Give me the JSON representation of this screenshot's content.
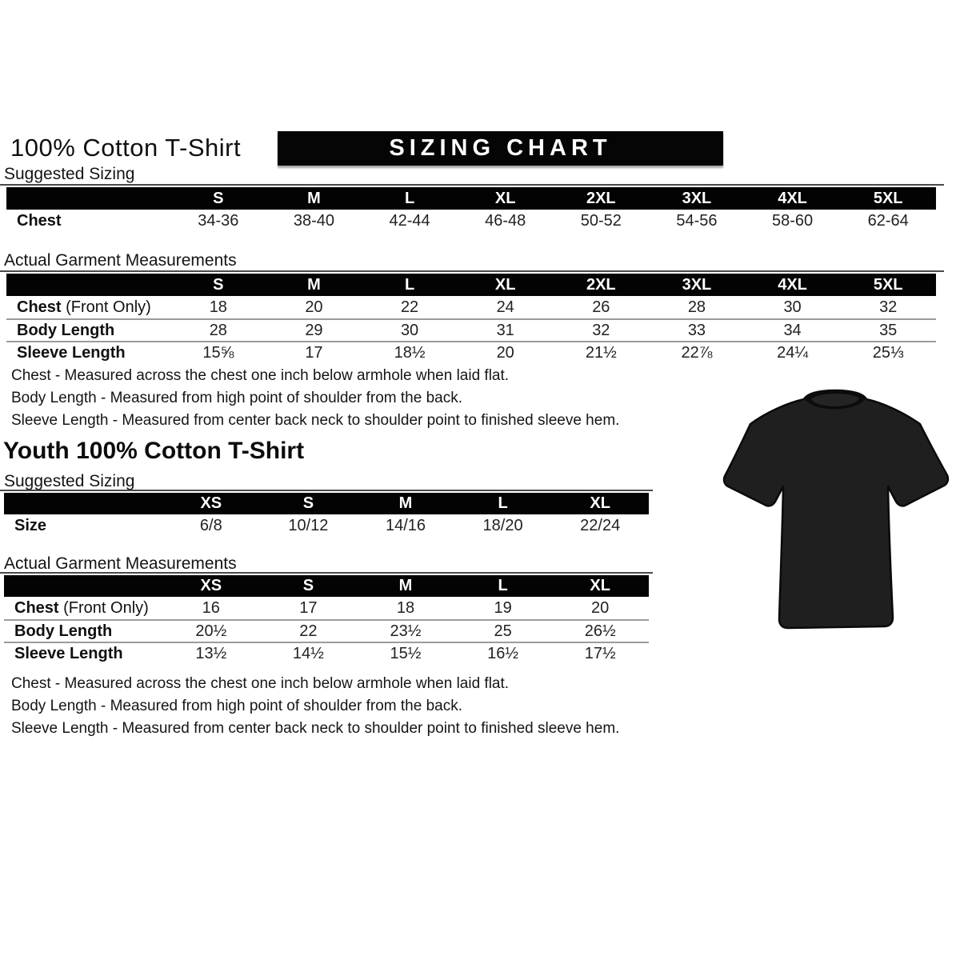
{
  "adult_section": {
    "title": "100% Cotton T-Shirt",
    "banner_label": "SIZING CHART",
    "suggested_sizing": {
      "heading": "Suggested Sizing",
      "columns": [
        "S",
        "M",
        "L",
        "XL",
        "2XL",
        "3XL",
        "4XL",
        "5XL"
      ],
      "rows": [
        {
          "label": "Chest",
          "suffix": "",
          "values": [
            "34-36",
            "38-40",
            "42-44",
            "46-48",
            "50-52",
            "54-56",
            "58-60",
            "62-64"
          ]
        }
      ]
    },
    "actual_measurements": {
      "heading": "Actual Garment Measurements",
      "columns": [
        "S",
        "M",
        "L",
        "XL",
        "2XL",
        "3XL",
        "4XL",
        "5XL"
      ],
      "rows": [
        {
          "label": "Chest",
          "suffix": " (Front Only)",
          "values": [
            "18",
            "20",
            "22",
            "24",
            "26",
            "28",
            "30",
            "32"
          ]
        },
        {
          "label": "Body Length",
          "suffix": "",
          "values": [
            "28",
            "29",
            "30",
            "31",
            "32",
            "33",
            "34",
            "35"
          ]
        },
        {
          "label": "Sleeve Length",
          "suffix": "",
          "values": [
            "15⅝",
            "17",
            "18½",
            "20",
            "21½",
            "22⅞",
            "24¼",
            "25⅓"
          ]
        }
      ]
    },
    "notes": [
      "Chest - Measured across the chest one inch below armhole when laid flat.",
      "Body Length - Measured from high point of shoulder from the back.",
      "Sleeve Length - Measured from center back neck to shoulder point to finished sleeve hem."
    ]
  },
  "youth_section": {
    "title": "Youth 100% Cotton T-Shirt",
    "suggested_sizing": {
      "heading": "Suggested Sizing",
      "columns": [
        "XS",
        "S",
        "M",
        "L",
        "XL"
      ],
      "rows": [
        {
          "label": "Size",
          "suffix": "",
          "values": [
            "6/8",
            "10/12",
            "14/16",
            "18/20",
            "22/24"
          ]
        }
      ]
    },
    "actual_measurements": {
      "heading": "Actual Garment Measurements",
      "columns": [
        "XS",
        "S",
        "M",
        "L",
        "XL"
      ],
      "rows": [
        {
          "label": "Chest",
          "suffix": " (Front Only)",
          "values": [
            "16",
            "17",
            "18",
            "19",
            "20"
          ]
        },
        {
          "label": "Body Length",
          "suffix": "",
          "values": [
            "20½",
            "22",
            "23½",
            "25",
            "26½"
          ]
        },
        {
          "label": "Sleeve Length",
          "suffix": "",
          "values": [
            "13½",
            "14½",
            "15½",
            "16½",
            "17½"
          ]
        }
      ]
    },
    "notes": [
      "Chest - Measured across the chest one inch below armhole when laid flat.",
      "Body Length - Measured from high point of shoulder from the back.",
      "Sleeve Length - Measured from center back neck to shoulder point to finished sleeve hem."
    ]
  },
  "tshirt_image": {
    "name": "black-tshirt-photo",
    "color": "#1f1f1f"
  }
}
